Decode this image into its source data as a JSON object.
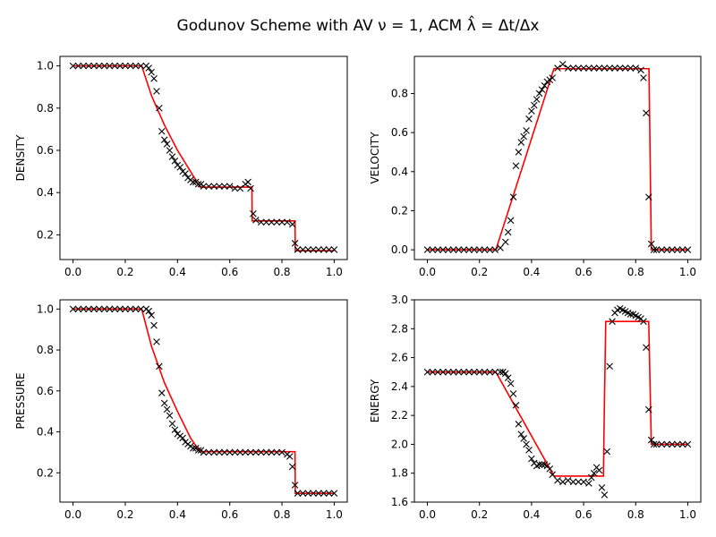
{
  "title": "Godunov Scheme with AV ν = 1, ACM λ̂ = Δt/Δx",
  "colors": {
    "exact": "#ff0000",
    "numerical": "#000000"
  },
  "chart_data": [
    {
      "type": "line",
      "ylabel": "DENSITY",
      "xlim": [
        -0.05,
        1.05
      ],
      "ylim": [
        0.083,
        1.045
      ],
      "xticks": [
        "0.0",
        "0.2",
        "0.4",
        "0.6",
        "0.8",
        "1.0"
      ],
      "yticks": [
        "0.2",
        "0.4",
        "0.6",
        "0.8",
        "1.0"
      ],
      "series": [
        {
          "style": "line",
          "x": [
            0.0,
            0.263,
            0.3,
            0.35,
            0.4,
            0.45,
            0.486,
            0.6,
            0.685,
            0.686,
            0.85,
            0.851,
            1.0
          ],
          "y": [
            1.0,
            1.0,
            0.86,
            0.72,
            0.6,
            0.5,
            0.426,
            0.426,
            0.426,
            0.266,
            0.266,
            0.125,
            0.125
          ]
        },
        {
          "style": "markers",
          "x": [
            0.0,
            0.02,
            0.04,
            0.06,
            0.08,
            0.1,
            0.12,
            0.14,
            0.16,
            0.18,
            0.2,
            0.22,
            0.24,
            0.26,
            0.28,
            0.29,
            0.3,
            0.31,
            0.32,
            0.33,
            0.34,
            0.35,
            0.36,
            0.37,
            0.38,
            0.39,
            0.4,
            0.41,
            0.42,
            0.43,
            0.44,
            0.45,
            0.46,
            0.47,
            0.48,
            0.49,
            0.5,
            0.52,
            0.54,
            0.56,
            0.58,
            0.6,
            0.62,
            0.64,
            0.66,
            0.67,
            0.68,
            0.69,
            0.7,
            0.72,
            0.74,
            0.76,
            0.78,
            0.8,
            0.82,
            0.84,
            0.85,
            0.86,
            0.88,
            0.9,
            0.92,
            0.94,
            0.96,
            0.98,
            1.0
          ],
          "y": [
            1.0,
            1.0,
            1.0,
            1.0,
            1.0,
            1.0,
            1.0,
            1.0,
            1.0,
            1.0,
            1.0,
            1.0,
            1.0,
            1.0,
            1.0,
            0.99,
            0.97,
            0.94,
            0.88,
            0.8,
            0.69,
            0.65,
            0.63,
            0.6,
            0.57,
            0.55,
            0.53,
            0.52,
            0.5,
            0.49,
            0.47,
            0.46,
            0.45,
            0.45,
            0.44,
            0.44,
            0.43,
            0.43,
            0.43,
            0.43,
            0.43,
            0.43,
            0.42,
            0.42,
            0.44,
            0.45,
            0.42,
            0.3,
            0.27,
            0.26,
            0.26,
            0.26,
            0.26,
            0.26,
            0.26,
            0.25,
            0.16,
            0.13,
            0.13,
            0.13,
            0.13,
            0.13,
            0.13,
            0.13,
            0.13
          ]
        }
      ]
    },
    {
      "type": "line",
      "ylabel": "VELOCITY",
      "xlim": [
        -0.05,
        1.05
      ],
      "ylim": [
        -0.05,
        0.99
      ],
      "xticks": [
        "0.0",
        "0.2",
        "0.4",
        "0.6",
        "0.8",
        "1.0"
      ],
      "yticks": [
        "0.0",
        "0.2",
        "0.4",
        "0.6",
        "0.8"
      ],
      "series": [
        {
          "style": "line",
          "x": [
            0.0,
            0.263,
            0.486,
            0.84,
            0.851,
            0.86,
            1.0
          ],
          "y": [
            0.0,
            0.0,
            0.927,
            0.927,
            0.927,
            0.0,
            0.0
          ]
        },
        {
          "style": "markers",
          "x": [
            0.0,
            0.02,
            0.04,
            0.06,
            0.08,
            0.1,
            0.12,
            0.14,
            0.16,
            0.18,
            0.2,
            0.22,
            0.24,
            0.26,
            0.28,
            0.3,
            0.31,
            0.32,
            0.33,
            0.34,
            0.35,
            0.36,
            0.37,
            0.38,
            0.39,
            0.4,
            0.41,
            0.42,
            0.43,
            0.44,
            0.45,
            0.46,
            0.47,
            0.48,
            0.5,
            0.52,
            0.54,
            0.56,
            0.58,
            0.6,
            0.62,
            0.64,
            0.66,
            0.68,
            0.7,
            0.72,
            0.74,
            0.76,
            0.78,
            0.8,
            0.82,
            0.83,
            0.84,
            0.85,
            0.86,
            0.87,
            0.88,
            0.9,
            0.92,
            0.94,
            0.96,
            0.98,
            1.0
          ],
          "y": [
            0.0,
            0.0,
            0.0,
            0.0,
            0.0,
            0.0,
            0.0,
            0.0,
            0.0,
            0.0,
            0.0,
            0.0,
            0.0,
            0.0,
            0.01,
            0.04,
            0.09,
            0.15,
            0.27,
            0.43,
            0.5,
            0.55,
            0.58,
            0.61,
            0.67,
            0.71,
            0.74,
            0.77,
            0.8,
            0.82,
            0.84,
            0.86,
            0.87,
            0.88,
            0.93,
            0.95,
            0.93,
            0.93,
            0.93,
            0.93,
            0.93,
            0.93,
            0.93,
            0.93,
            0.93,
            0.93,
            0.93,
            0.93,
            0.93,
            0.93,
            0.92,
            0.88,
            0.7,
            0.27,
            0.03,
            0.0,
            0.0,
            0.0,
            0.0,
            0.0,
            0.0,
            0.0,
            0.0
          ]
        }
      ]
    },
    {
      "type": "line",
      "ylabel": "PRESSURE",
      "xlim": [
        -0.05,
        1.05
      ],
      "ylim": [
        0.057,
        1.045
      ],
      "xticks": [
        "0.0",
        "0.2",
        "0.4",
        "0.6",
        "0.8",
        "1.0"
      ],
      "yticks": [
        "0.2",
        "0.4",
        "0.6",
        "0.8",
        "1.0"
      ],
      "series": [
        {
          "style": "line",
          "x": [
            0.0,
            0.263,
            0.3,
            0.35,
            0.4,
            0.45,
            0.486,
            0.84,
            0.85,
            0.851,
            1.0
          ],
          "y": [
            1.0,
            1.0,
            0.82,
            0.64,
            0.5,
            0.37,
            0.303,
            0.303,
            0.303,
            0.1,
            0.1
          ]
        },
        {
          "style": "markers",
          "x": [
            0.0,
            0.02,
            0.04,
            0.06,
            0.08,
            0.1,
            0.12,
            0.14,
            0.16,
            0.18,
            0.2,
            0.22,
            0.24,
            0.26,
            0.28,
            0.29,
            0.3,
            0.31,
            0.32,
            0.33,
            0.34,
            0.35,
            0.36,
            0.37,
            0.38,
            0.39,
            0.4,
            0.41,
            0.42,
            0.43,
            0.44,
            0.45,
            0.46,
            0.47,
            0.48,
            0.49,
            0.5,
            0.52,
            0.54,
            0.56,
            0.58,
            0.6,
            0.62,
            0.64,
            0.66,
            0.68,
            0.7,
            0.72,
            0.74,
            0.76,
            0.78,
            0.8,
            0.82,
            0.83,
            0.84,
            0.85,
            0.86,
            0.88,
            0.9,
            0.92,
            0.94,
            0.96,
            0.98,
            1.0
          ],
          "y": [
            1.0,
            1.0,
            1.0,
            1.0,
            1.0,
            1.0,
            1.0,
            1.0,
            1.0,
            1.0,
            1.0,
            1.0,
            1.0,
            1.0,
            1.0,
            0.99,
            0.97,
            0.92,
            0.84,
            0.72,
            0.59,
            0.54,
            0.51,
            0.48,
            0.44,
            0.41,
            0.39,
            0.38,
            0.37,
            0.35,
            0.34,
            0.33,
            0.32,
            0.32,
            0.31,
            0.31,
            0.3,
            0.3,
            0.3,
            0.3,
            0.3,
            0.3,
            0.3,
            0.3,
            0.3,
            0.3,
            0.3,
            0.3,
            0.3,
            0.3,
            0.3,
            0.3,
            0.29,
            0.28,
            0.23,
            0.14,
            0.1,
            0.1,
            0.1,
            0.1,
            0.1,
            0.1,
            0.1,
            0.1
          ]
        }
      ]
    },
    {
      "type": "line",
      "ylabel": "ENERGY",
      "xlim": [
        -0.05,
        1.05
      ],
      "ylim": [
        1.6,
        3.0
      ],
      "xticks": [
        "0.0",
        "0.2",
        "0.4",
        "0.6",
        "0.8",
        "1.0"
      ],
      "yticks": [
        "1.6",
        "1.8",
        "2.0",
        "2.2",
        "2.4",
        "2.6",
        "2.8",
        "3.0"
      ],
      "series": [
        {
          "style": "line",
          "x": [
            0.0,
            0.263,
            0.486,
            0.676,
            0.68,
            0.685,
            0.84,
            0.85,
            0.86,
            1.0
          ],
          "y": [
            2.5,
            2.5,
            1.78,
            1.78,
            2.3,
            2.85,
            2.85,
            2.85,
            2.0,
            2.0
          ]
        },
        {
          "style": "markers",
          "x": [
            0.0,
            0.02,
            0.04,
            0.06,
            0.08,
            0.1,
            0.12,
            0.14,
            0.16,
            0.18,
            0.2,
            0.22,
            0.24,
            0.26,
            0.28,
            0.29,
            0.3,
            0.31,
            0.32,
            0.33,
            0.34,
            0.35,
            0.36,
            0.37,
            0.38,
            0.39,
            0.4,
            0.41,
            0.42,
            0.43,
            0.44,
            0.45,
            0.46,
            0.47,
            0.48,
            0.5,
            0.52,
            0.54,
            0.56,
            0.58,
            0.6,
            0.62,
            0.63,
            0.64,
            0.65,
            0.66,
            0.67,
            0.68,
            0.69,
            0.7,
            0.71,
            0.72,
            0.73,
            0.74,
            0.75,
            0.76,
            0.77,
            0.78,
            0.79,
            0.8,
            0.81,
            0.82,
            0.83,
            0.84,
            0.85,
            0.86,
            0.87,
            0.88,
            0.9,
            0.92,
            0.94,
            0.96,
            0.98,
            1.0
          ],
          "y": [
            2.5,
            2.5,
            2.5,
            2.5,
            2.5,
            2.5,
            2.5,
            2.5,
            2.5,
            2.5,
            2.5,
            2.5,
            2.5,
            2.5,
            2.5,
            2.5,
            2.49,
            2.46,
            2.42,
            2.35,
            2.27,
            2.14,
            2.07,
            2.04,
            2.0,
            1.96,
            1.9,
            1.87,
            1.85,
            1.86,
            1.86,
            1.86,
            1.85,
            1.83,
            1.79,
            1.75,
            1.74,
            1.75,
            1.74,
            1.74,
            1.74,
            1.73,
            1.77,
            1.8,
            1.84,
            1.82,
            1.7,
            1.65,
            1.95,
            2.54,
            2.85,
            2.91,
            2.93,
            2.94,
            2.93,
            2.92,
            2.91,
            2.9,
            2.9,
            2.89,
            2.88,
            2.87,
            2.85,
            2.67,
            2.24,
            2.03,
            2.0,
            2.0,
            2.0,
            2.0,
            2.0,
            2.0,
            2.0,
            2.0
          ]
        }
      ]
    }
  ]
}
